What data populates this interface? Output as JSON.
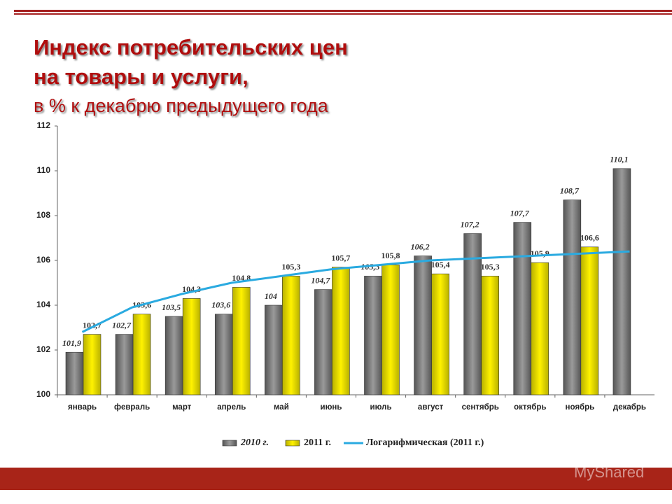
{
  "chart_data": {
    "type": "bar",
    "title": [
      "Индекс потребительских цен",
      "на товары и услуги,"
    ],
    "subtitle": "в % к декабрю предыдущего года",
    "categories": [
      "январь",
      "февраль",
      "март",
      "апрель",
      "май",
      "июнь",
      "июль",
      "август",
      "сентябрь",
      "октябрь",
      "ноябрь",
      "декабрь"
    ],
    "series": [
      {
        "name": "2010 г.",
        "color": "#7a7a7a",
        "values": [
          101.9,
          102.7,
          103.5,
          103.6,
          104,
          104.7,
          105.3,
          106.2,
          107.2,
          107.7,
          108.7,
          110.1
        ],
        "value_labels": [
          "101,9",
          "102,7",
          "103,5",
          "103,6",
          "104",
          "104,7",
          "105,3",
          "106,2",
          "107,2",
          "107,7",
          "108,7",
          "110,1"
        ]
      },
      {
        "name": "2011 г.",
        "color": "#e6e000",
        "values": [
          102.7,
          103.6,
          104.3,
          104.8,
          105.3,
          105.7,
          105.8,
          105.4,
          105.3,
          105.9,
          106.6,
          null
        ],
        "value_labels": [
          "102,7",
          "103,6",
          "104,3",
          "104,8",
          "105,3",
          "105,7",
          "105,8",
          "105,4",
          "105,3",
          "105,9",
          "106,6",
          null
        ]
      },
      {
        "name": "Логарифмическая (2011 г.)",
        "color": "#2aaae0",
        "line": true,
        "values": [
          102.8,
          103.9,
          104.5,
          105.0,
          105.3,
          105.6,
          105.8,
          106.0,
          106.1,
          106.2,
          106.3,
          106.4
        ]
      }
    ],
    "ylim": [
      100,
      112
    ],
    "yticks": [
      100,
      102,
      104,
      106,
      108,
      110,
      112
    ],
    "watermark": "MyShared"
  }
}
